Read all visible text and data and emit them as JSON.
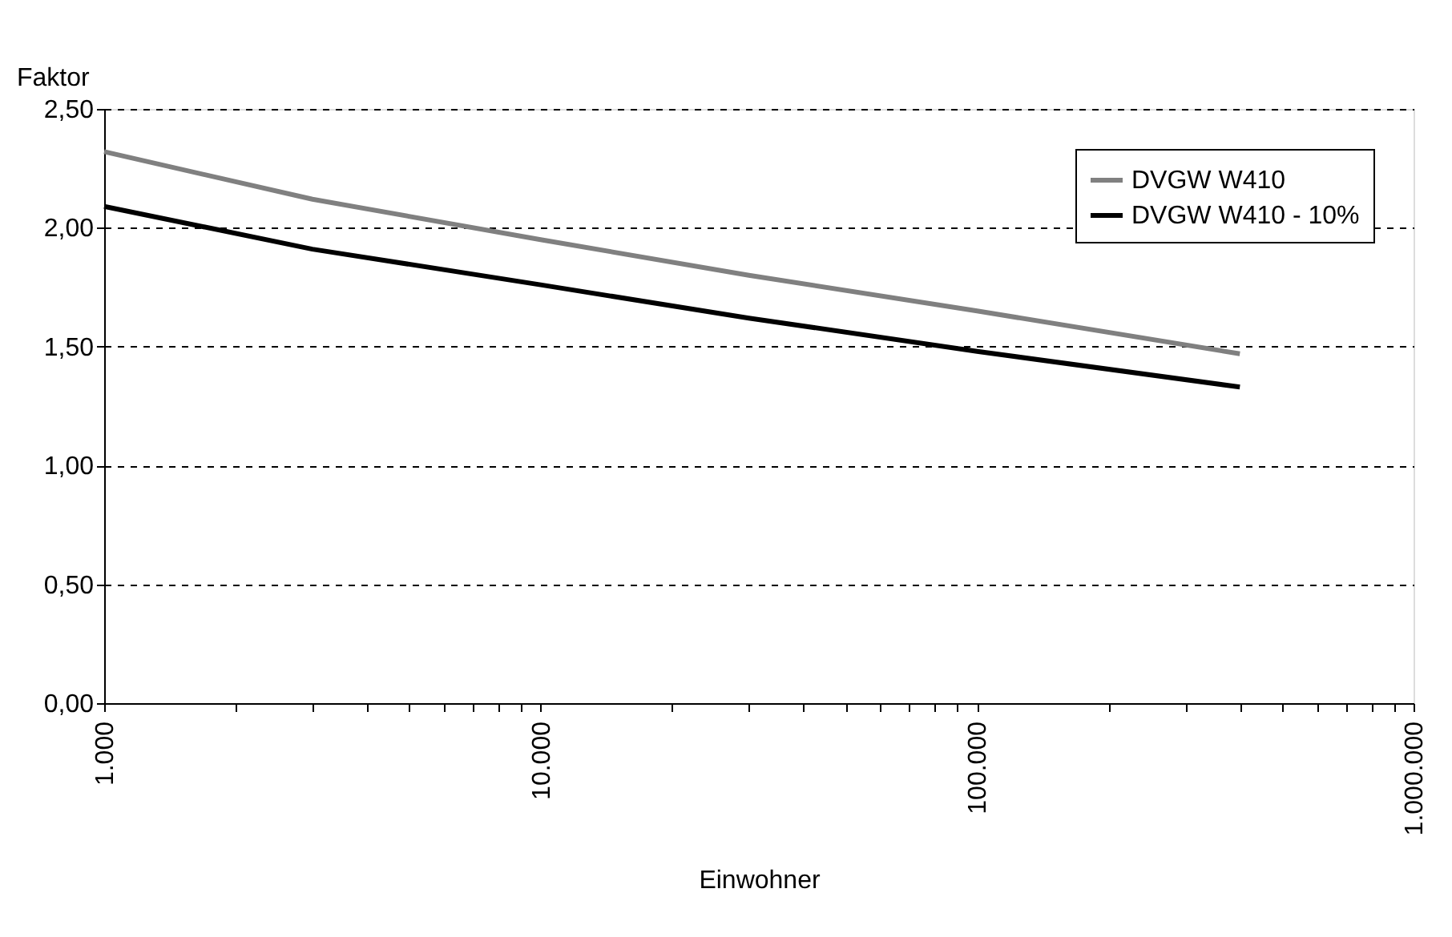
{
  "chart_data": {
    "type": "line",
    "xlabel": "Einwohner",
    "ylabel": "Faktor",
    "log": "x",
    "grid": "y",
    "legend": "top right",
    "line_style": "solid",
    "marker": "none",
    "xlim": [
      1000,
      1000000
    ],
    "xticks": [
      {
        "value": 1000,
        "label": "1.000"
      },
      {
        "value": 2000,
        "label": null
      },
      {
        "value": 3000,
        "label": null
      },
      {
        "value": 4000,
        "label": null
      },
      {
        "value": 5000,
        "label": null
      },
      {
        "value": 6000,
        "label": null
      },
      {
        "value": 7000,
        "label": null
      },
      {
        "value": 8000,
        "label": null
      },
      {
        "value": 9000,
        "label": null
      },
      {
        "value": 10000,
        "label": "10.000"
      },
      {
        "value": 20000,
        "label": null
      },
      {
        "value": 30000,
        "label": null
      },
      {
        "value": 40000,
        "label": null
      },
      {
        "value": 50000,
        "label": null
      },
      {
        "value": 60000,
        "label": null
      },
      {
        "value": 70000,
        "label": null
      },
      {
        "value": 80000,
        "label": null
      },
      {
        "value": 90000,
        "label": null
      },
      {
        "value": 100000,
        "label": "100.000"
      },
      {
        "value": 200000,
        "label": null
      },
      {
        "value": 300000,
        "label": null
      },
      {
        "value": 400000,
        "label": null
      },
      {
        "value": 500000,
        "label": null
      },
      {
        "value": 600000,
        "label": null
      },
      {
        "value": 700000,
        "label": null
      },
      {
        "value": 800000,
        "label": null
      },
      {
        "value": 900000,
        "label": null
      },
      {
        "value": 1000000,
        "label": "1.000.000"
      }
    ],
    "ylim": [
      0,
      2.5
    ],
    "yticks": [
      {
        "value": 0,
        "label": "0,00"
      },
      {
        "value": 0.5,
        "label": "0,50"
      },
      {
        "value": 1,
        "label": "1,00"
      },
      {
        "value": 1.5,
        "label": "1,50"
      },
      {
        "value": 2,
        "label": "2,00"
      },
      {
        "value": 2.5,
        "label": "2,50"
      }
    ],
    "x": [
      1000,
      3000,
      10000,
      30000,
      100000,
      400000
    ],
    "series": [
      {
        "name": "DVGW W410",
        "color": "#808080",
        "values": [
          2.32,
          2.12,
          1.95,
          1.8,
          1.65,
          1.47
        ]
      },
      {
        "name": "DVGW W410 - 10%",
        "color": "#000000",
        "values": [
          2.09,
          1.91,
          1.76,
          1.62,
          1.48,
          1.33
        ]
      }
    ]
  }
}
